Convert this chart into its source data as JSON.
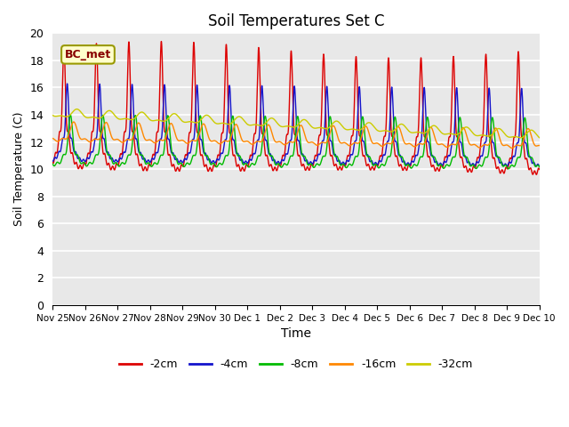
{
  "title": "Soil Temperatures Set C",
  "xlabel": "Time",
  "ylabel": "Soil Temperature (C)",
  "ylim": [
    0,
    20
  ],
  "yticks": [
    0,
    2,
    4,
    6,
    8,
    10,
    12,
    14,
    16,
    18,
    20
  ],
  "xtick_labels": [
    "Nov 25",
    "Nov 26",
    "Nov 27",
    "Nov 28",
    "Nov 29",
    "Nov 30",
    "Dec 1",
    "Dec 2",
    "Dec 3",
    "Dec 4",
    "Dec 5",
    "Dec 6",
    "Dec 7",
    "Dec 8",
    "Dec 9",
    "Dec 10"
  ],
  "annotation": "BC_met",
  "line_colors": [
    "#dd0000",
    "#1414cc",
    "#00bb00",
    "#ff8800",
    "#cccc00"
  ],
  "line_labels": [
    "-2cm",
    "-4cm",
    "-8cm",
    "-16cm",
    "-32cm"
  ],
  "background_color": "#e8e8e8",
  "n_points": 3600,
  "n_days": 15
}
